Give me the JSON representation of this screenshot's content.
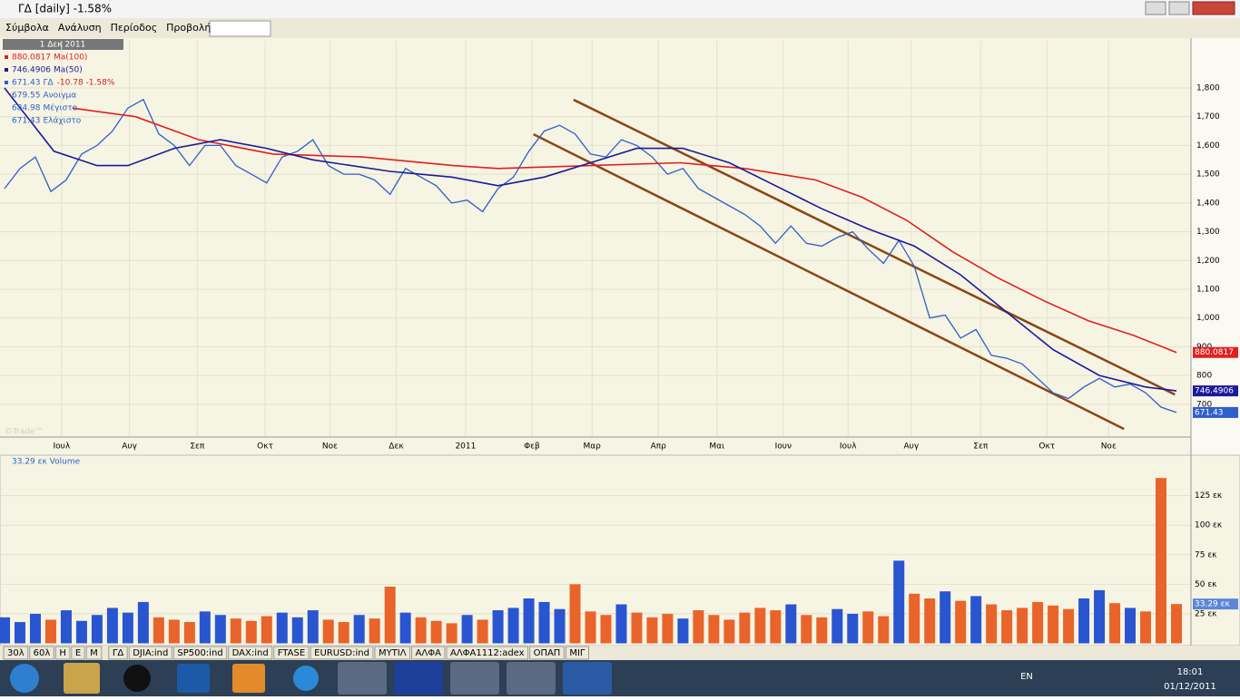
{
  "window": {
    "title": "ΓΔ [daily] -1.58%",
    "menu": [
      "Σύμβολα",
      "Ανάλυση",
      "Περίοδος",
      "Προβολή"
    ]
  },
  "chart_data": [
    {
      "type": "line",
      "date": "1 Δεκ 2011",
      "change": "-10.78 -1.58%",
      "watermark": "©Trade™",
      "ohlc": [
        {
          "name": "Ανοιγμα",
          "value": 679.55
        },
        {
          "name": "Μέγιστο",
          "value": 684.98
        },
        {
          "name": "Ελάχιστο",
          "value": 671.43
        }
      ],
      "series": [
        {
          "name": "ΓΔ",
          "color": "#2f5fc8",
          "values": [
            1450,
            1520,
            1560,
            1440,
            1480,
            1570,
            1600,
            1650,
            1730,
            1760,
            1640,
            1600,
            1530,
            1600,
            1600,
            1530,
            1500,
            1470,
            1560,
            1580,
            1620,
            1530,
            1500,
            1500,
            1480,
            1430,
            1520,
            1490,
            1460,
            1400,
            1410,
            1370,
            1450,
            1490,
            1580,
            1650,
            1670,
            1640,
            1570,
            1560,
            1620,
            1600,
            1560,
            1500,
            1520,
            1450,
            1420,
            1390,
            1360,
            1320,
            1260,
            1320,
            1260,
            1250,
            1280,
            1300,
            1240,
            1190,
            1270,
            1180,
            1000,
            1010,
            930,
            960,
            870,
            860,
            840,
            790,
            740,
            720,
            760,
            790,
            760,
            770,
            740,
            690,
            671.43
          ]
        },
        {
          "name": "Ma(100)",
          "color": "#e02020",
          "x": [
            4.4,
            8.5,
            12.6,
            17.4,
            23.2,
            29.1,
            32,
            38,
            43.8,
            48,
            52.6,
            55.6,
            58.5,
            61.5,
            64.4,
            67.4,
            70.3,
            73.2,
            76
          ],
          "values": [
            1730,
            1700,
            1620,
            1570,
            1560,
            1530,
            1520,
            1530,
            1540,
            1520,
            1480,
            1420,
            1340,
            1230,
            1140,
            1060,
            990,
            940,
            880.0817
          ]
        },
        {
          "name": "Ma(50)",
          "color": "#1a1a9a",
          "x": [
            0,
            3.2,
            6,
            8,
            11,
            14,
            17,
            20,
            25,
            29,
            32,
            35,
            38,
            41,
            44,
            47,
            50,
            53,
            56,
            59,
            62,
            65,
            68,
            71,
            74,
            76
          ],
          "values": [
            1800,
            1580,
            1530,
            1530,
            1590,
            1620,
            1590,
            1550,
            1510,
            1490,
            1460,
            1490,
            1540,
            1590,
            1590,
            1540,
            1460,
            1380,
            1310,
            1250,
            1150,
            1020,
            890,
            800,
            760,
            746.4906
          ]
        }
      ],
      "trendlines": [
        {
          "color": "#8b4513",
          "x": [
            36.9,
            75.9
          ],
          "values": [
            1759,
            734
          ]
        },
        {
          "color": "#8b4513",
          "x": [
            34.3,
            72.6
          ],
          "values": [
            1639,
            614
          ]
        }
      ],
      "xlim": [
        0,
        76
      ],
      "xticks": [
        {
          "value": 3.7,
          "label": "Ιουλ"
        },
        {
          "value": 8.1,
          "label": "Αυγ"
        },
        {
          "value": 12.5,
          "label": "Σεπ"
        },
        {
          "value": 16.9,
          "label": "Οκτ"
        },
        {
          "value": 21.1,
          "label": "Νοε"
        },
        {
          "value": 25.4,
          "label": "Δεκ"
        },
        {
          "value": 29.9,
          "label": "2011"
        },
        {
          "value": 34.2,
          "label": "Φεβ"
        },
        {
          "value": 38.1,
          "label": "Μαρ"
        },
        {
          "value": 42.4,
          "label": "Απρ"
        },
        {
          "value": 46.2,
          "label": "Μαι"
        },
        {
          "value": 50.5,
          "label": "Ιουν"
        },
        {
          "value": 54.7,
          "label": "Ιουλ"
        },
        {
          "value": 58.8,
          "label": "Αυγ"
        },
        {
          "value": 63.3,
          "label": "Σεπ"
        },
        {
          "value": 67.6,
          "label": "Οκτ"
        },
        {
          "value": 71.6,
          "label": "Νοε"
        }
      ],
      "ylim": [
        586,
        1964
      ],
      "yticks": [
        700,
        800,
        900,
        {
          "value": 1000,
          "label": "1,000"
        },
        {
          "value": 1100,
          "label": "1,100"
        },
        {
          "value": 1200,
          "label": "1,200"
        },
        {
          "value": 1300,
          "label": "1,300"
        },
        {
          "value": 1400,
          "label": "1,400"
        },
        {
          "value": 1500,
          "label": "1,500"
        },
        {
          "value": 1600,
          "label": "1,600"
        },
        {
          "value": 1700,
          "label": "1,700"
        },
        {
          "value": 1800,
          "label": "1,800"
        }
      ],
      "grid": true
    },
    {
      "type": "bar",
      "legend": "33.29 εκ Volume",
      "last_label": "33.29 εκ",
      "up_color": "#2a55d0",
      "down_color": "#e8642a",
      "values": [
        22,
        18,
        25,
        20,
        28,
        19,
        24,
        30,
        26,
        35,
        22,
        20,
        18,
        27,
        24,
        21,
        19,
        23,
        26,
        22,
        28,
        20,
        18,
        24,
        21,
        48,
        26,
        22,
        19,
        17,
        24,
        20,
        28,
        30,
        38,
        35,
        29,
        50,
        27,
        24,
        33,
        26,
        22,
        25,
        21,
        28,
        24,
        20,
        26,
        30,
        28,
        33,
        24,
        22,
        29,
        25,
        27,
        23,
        70,
        42,
        38,
        44,
        36,
        40,
        33,
        28,
        30,
        35,
        32,
        29,
        38,
        45,
        34,
        30,
        27,
        140,
        33.29
      ],
      "xlim": [
        0,
        76
      ],
      "ylim": [
        0,
        157
      ],
      "yticks": [
        {
          "value": 25,
          "label": "25 εκ"
        },
        {
          "value": 50,
          "label": "50 εκ"
        },
        {
          "value": 75,
          "label": "75 εκ"
        },
        {
          "value": 100,
          "label": "100 εκ"
        },
        {
          "value": 125,
          "label": "125 εκ"
        }
      ],
      "grid": true
    }
  ],
  "tabs": [
    "30λ",
    "60λ",
    "Η",
    "Ε",
    "Μ",
    "ΓΔ",
    "DJIA:ind",
    "SP500:ind",
    "DAX:ind",
    "FTASE",
    "EURUSD:ind",
    "ΜΥΤΙΛ",
    "ΑΛΦΑ",
    "ΑΛΦΑ1112:adex",
    "ΟΠΑΠ",
    "ΜΙΓ"
  ],
  "taskbar": {
    "language": "EN",
    "time": "18:01",
    "date": "01/12/2011"
  }
}
